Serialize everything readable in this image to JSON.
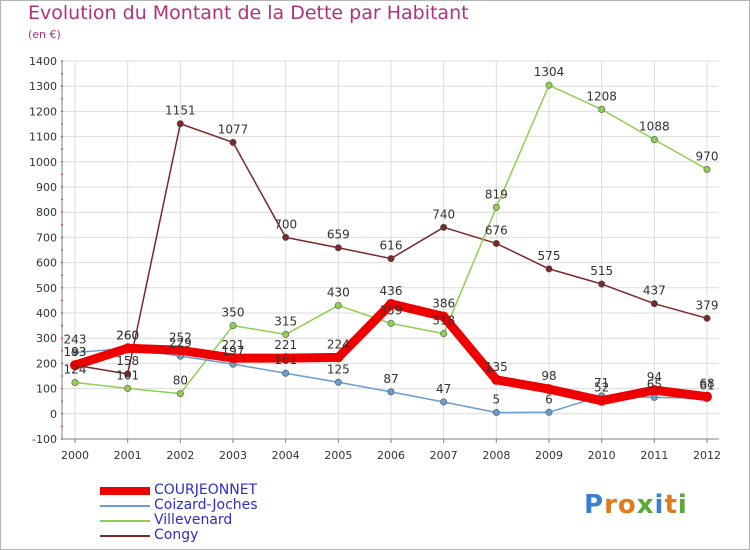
{
  "title": "Evolution du Montant de la Dette par Habitant",
  "subtitle": "(en €)",
  "logo_text": "Proxiti",
  "colors": {
    "title": "#b0327a",
    "legend_text": "#2e2ec6",
    "axis": "#808080",
    "grid": "#dcdcdc"
  },
  "chart_data": {
    "type": "line",
    "title": "Evolution du Montant de la Dette par Habitant",
    "subtitle": "(en €)",
    "x": [
      "2000",
      "2001",
      "2002",
      "2003",
      "2004",
      "2005",
      "2006",
      "2007",
      "2008",
      "2009",
      "2010",
      "2011",
      "2012"
    ],
    "ylim": [
      -100,
      1400
    ],
    "yticks": [
      -100,
      0,
      100,
      200,
      300,
      400,
      500,
      600,
      700,
      800,
      900,
      1000,
      1100,
      1200,
      1300,
      1400
    ],
    "grid": true,
    "legend_position": "bottom-left",
    "series": [
      {
        "name": "COURJEONNET",
        "color": "#ee0000",
        "values": [
          193,
          260,
          252,
          221,
          221,
          224,
          436,
          386,
          135,
          98,
          52,
          94,
          68
        ]
      },
      {
        "name": "Coizard-Joches",
        "color": "#6a9ccf",
        "values": [
          243,
          260,
          229,
          197,
          161,
          125,
          87,
          47,
          5,
          6,
          71,
          65,
          61
        ]
      },
      {
        "name": "Villevenard",
        "color": "#8ed050",
        "values": [
          124,
          101,
          80,
          350,
          315,
          430,
          359,
          318,
          819,
          1304,
          1208,
          1088,
          970
        ]
      },
      {
        "name": "Congy",
        "color": "#7a2828",
        "values": [
          193,
          158,
          1151,
          1077,
          700,
          659,
          616,
          740,
          676,
          575,
          515,
          437,
          379
        ]
      }
    ]
  }
}
